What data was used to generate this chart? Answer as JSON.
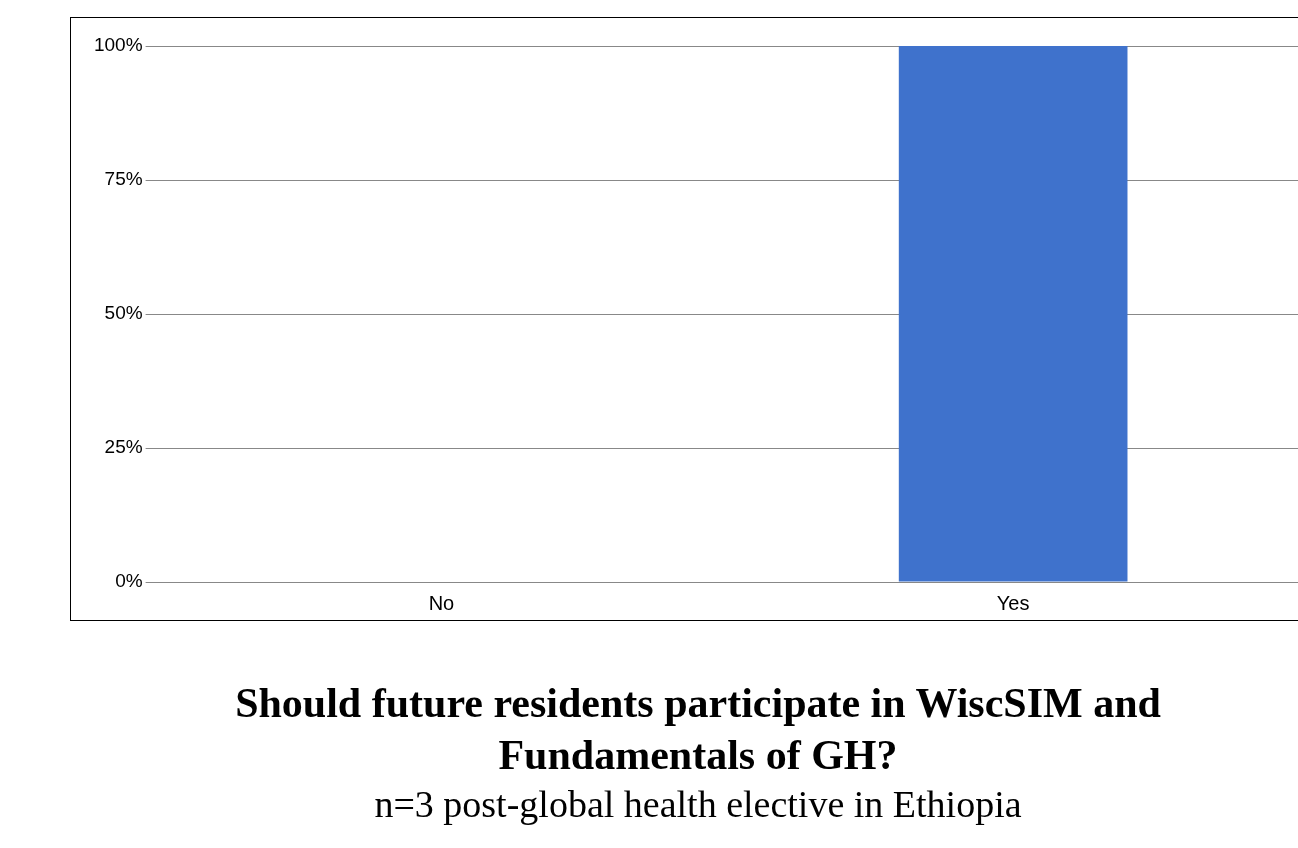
{
  "chart_data": {
    "type": "bar",
    "title": "Should future residents participate in WiscSIM and Fundamentals of GH?",
    "subtitle": "n=3 post-global health elective in Ethiopia",
    "categories": [
      "No",
      "Yes"
    ],
    "values": [
      0,
      100
    ],
    "color": "#3f72cc",
    "ylim": [
      0,
      100
    ],
    "yticks": [
      {
        "value": 0,
        "label": "0%"
      },
      {
        "value": 25,
        "label": "25%"
      },
      {
        "value": 50,
        "label": "50%"
      },
      {
        "value": 75,
        "label": "75%"
      },
      {
        "value": 100,
        "label": "100%"
      }
    ],
    "grid": "y",
    "legend": false
  }
}
